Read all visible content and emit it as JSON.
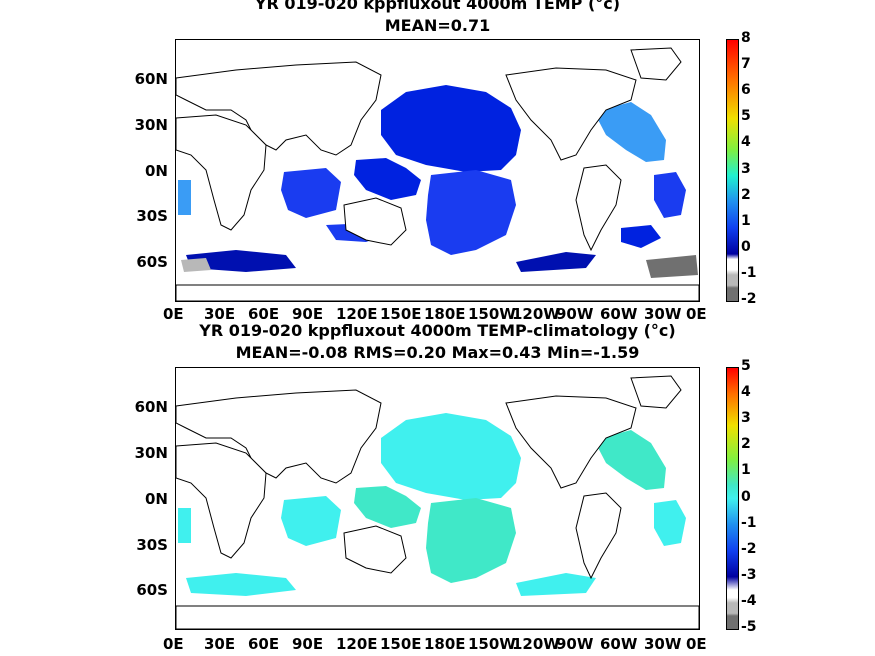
{
  "panels": [
    {
      "title": "YR 019-020 kppfluxout 4000m TEMP (°c)",
      "subtitle": "MEAN=0.71",
      "colorbar_ticks": [
        "8",
        "7",
        "6",
        "5",
        "4",
        "3",
        "2",
        "1",
        "0",
        "-1",
        "-2"
      ]
    },
    {
      "title": "YR 019-020 kppfluxout 4000m TEMP-climatology (°c)",
      "subtitle": "MEAN=-0.08   RMS=0.20   Max=0.43   Min=-1.59",
      "colorbar_ticks": [
        "5",
        "4",
        "3",
        "2",
        "1",
        "0",
        "-1",
        "-2",
        "-3",
        "-4",
        "-5"
      ]
    }
  ],
  "lat_labels": [
    "60N",
    "30N",
    "0N",
    "30S",
    "60S"
  ],
  "lon_labels": [
    "0E",
    "30E",
    "60E",
    "90E",
    "120E",
    "150E",
    "180E",
    "150W",
    "120W",
    "90W",
    "60W",
    "30W",
    "0E"
  ],
  "colors": {
    "deep_blue": "#0010d0",
    "mid_blue": "#1a3cf0",
    "light_blue": "#3a9cf5",
    "cyan": "#40f0ee",
    "aqua_green": "#40e8c8",
    "gray": "#b8b8b8",
    "dark_gray": "#707070"
  }
}
